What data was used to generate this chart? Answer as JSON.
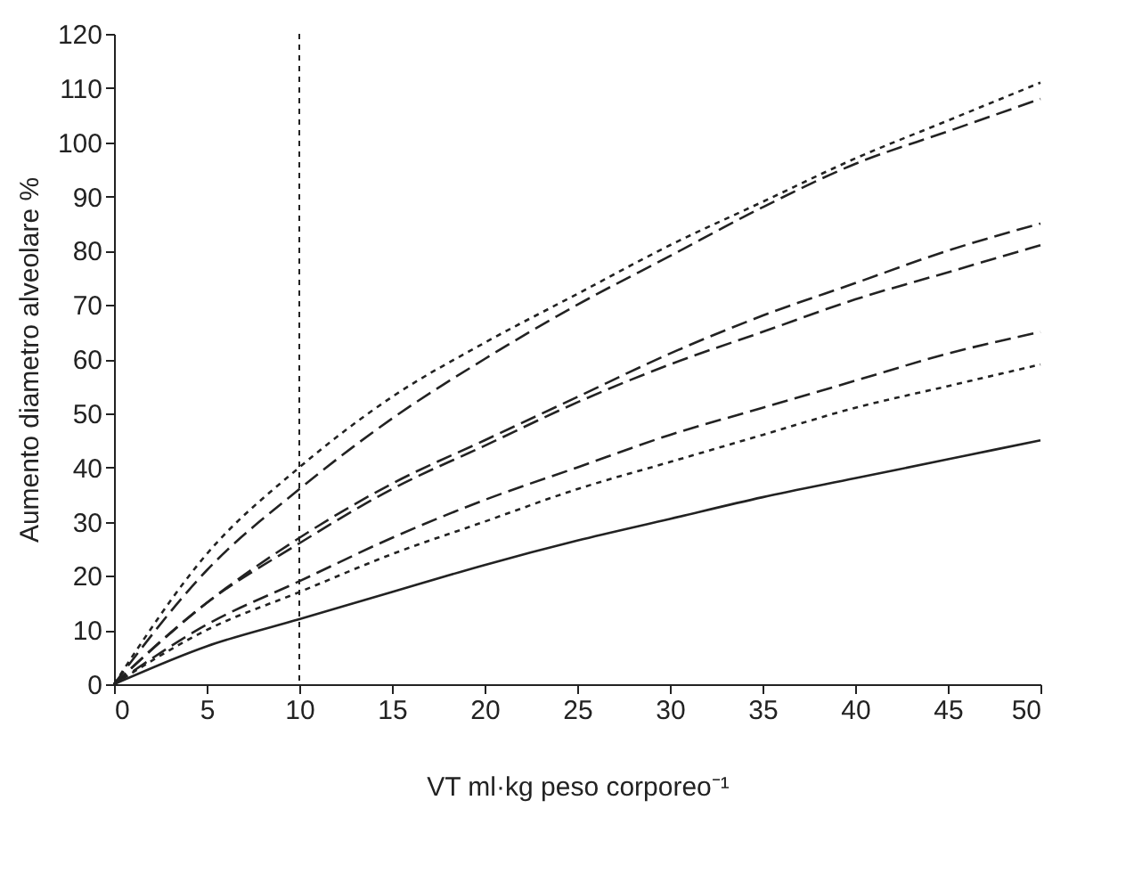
{
  "chart_data": {
    "type": "line",
    "xlabel": "VT ml·kg peso corporeo⁻¹",
    "ylabel": "Aumento diametro alveolare %",
    "x": [
      0,
      5,
      10,
      15,
      20,
      25,
      30,
      35,
      40,
      45,
      50
    ],
    "series": [
      {
        "color": "#222222",
        "line_style": "dotted",
        "values": [
          0,
          24,
          40,
          53,
          63,
          72,
          81,
          89,
          97,
          104,
          111
        ]
      },
      {
        "color": "#222222",
        "line_style": "dashed",
        "values": [
          0,
          21,
          36,
          49,
          60,
          70,
          79,
          88,
          96,
          102,
          108
        ]
      },
      {
        "color": "#222222",
        "line_style": "dashed",
        "values": [
          0,
          15,
          27,
          37,
          45,
          53,
          61,
          68,
          74,
          80,
          85
        ]
      },
      {
        "color": "#222222",
        "line_style": "dashed",
        "values": [
          0,
          15,
          26,
          36,
          44,
          52,
          59,
          65,
          71,
          76,
          81
        ]
      },
      {
        "color": "#222222",
        "line_style": "dashed",
        "values": [
          0,
          11,
          19,
          27,
          34,
          40,
          46,
          51,
          56,
          61,
          65
        ]
      },
      {
        "color": "#222222",
        "line_style": "dotted",
        "values": [
          0,
          10,
          17,
          24,
          30,
          36,
          41,
          46,
          51,
          55,
          59
        ]
      },
      {
        "color": "#222222",
        "line_style": "solid",
        "values": [
          0,
          7,
          12,
          17,
          22,
          26.5,
          30.5,
          34.5,
          38,
          41.5,
          45
        ]
      }
    ],
    "xlim": [
      0,
      50
    ],
    "xticks": [
      0,
      5,
      10,
      15,
      20,
      25,
      30,
      35,
      40,
      45,
      50
    ],
    "ylim": [
      0,
      120
    ],
    "yticks": [
      0,
      10,
      20,
      30,
      40,
      50,
      60,
      70,
      80,
      90,
      100,
      110,
      120
    ],
    "ref_lines": [
      {
        "axis": "x",
        "value": 10,
        "line_style": "dotted",
        "color": "#222222"
      }
    ],
    "grid": false,
    "legend": false
  }
}
